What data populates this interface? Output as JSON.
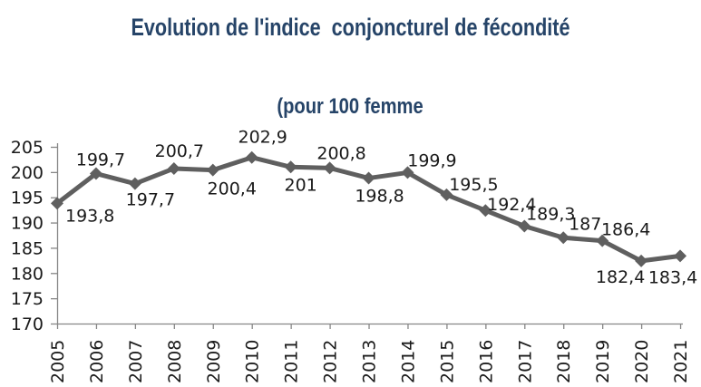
{
  "title": {
    "text": "Evolution de l'indice  conjoncturel de fécondité",
    "color": "#264468"
  },
  "subtitle": {
    "text": "(pour 100 femme",
    "color": "#264468"
  },
  "chart_data": {
    "type": "line",
    "title": "Evolution de l'indice conjoncturel de fécondité",
    "subtitle": "(pour 100 femme",
    "categories": [
      "2005",
      "2006",
      "2007",
      "2008",
      "2009",
      "2010",
      "2011",
      "2012",
      "2013",
      "2014",
      "2015",
      "2016",
      "2017",
      "2018",
      "2019",
      "2020",
      "2021"
    ],
    "values": [
      193.8,
      199.7,
      197.7,
      200.7,
      200.4,
      202.9,
      201,
      200.8,
      198.8,
      199.9,
      195.5,
      192.4,
      189.3,
      187,
      186.4,
      182.4,
      183.4
    ],
    "value_labels": [
      "193,8",
      "199,7",
      "197,7",
      "200,7",
      "200,4",
      "202,9",
      "201",
      "200,8",
      "198,8",
      "199,9",
      "195,5",
      "192,4",
      "189,3",
      "187",
      "186,4",
      "182,4",
      "183,4"
    ],
    "xlabel": "",
    "ylabel": "",
    "ylim": [
      170,
      205
    ],
    "yticks": [
      170,
      175,
      180,
      185,
      190,
      195,
      200,
      205
    ],
    "grid": false,
    "legend": "none",
    "marker": "diamond",
    "x_tick_rotation": -90,
    "colors": {
      "line": "#5f5f5f",
      "marker": "#5f5f5f",
      "axis": "#868686",
      "tick_label": "#1a1a1a",
      "data_label": "#1a1a1a"
    },
    "label_placements": [
      [
        9,
        20,
        "start"
      ],
      [
        5,
        -9,
        "middle"
      ],
      [
        17,
        24,
        "middle"
      ],
      [
        6,
        -13,
        "middle"
      ],
      [
        21,
        27,
        "middle"
      ],
      [
        12,
        -16,
        "middle"
      ],
      [
        11,
        26,
        "middle"
      ],
      [
        13,
        -10,
        "middle"
      ],
      [
        12,
        26,
        "middle"
      ],
      [
        27,
        -7,
        "middle"
      ],
      [
        30,
        -5,
        "middle"
      ],
      [
        29,
        0,
        "middle"
      ],
      [
        29,
        -7,
        "middle"
      ],
      [
        24,
        -9,
        "middle"
      ],
      [
        26,
        -6,
        "middle"
      ],
      [
        -23,
        24,
        "middle"
      ],
      [
        -8,
        30,
        "middle"
      ]
    ]
  }
}
